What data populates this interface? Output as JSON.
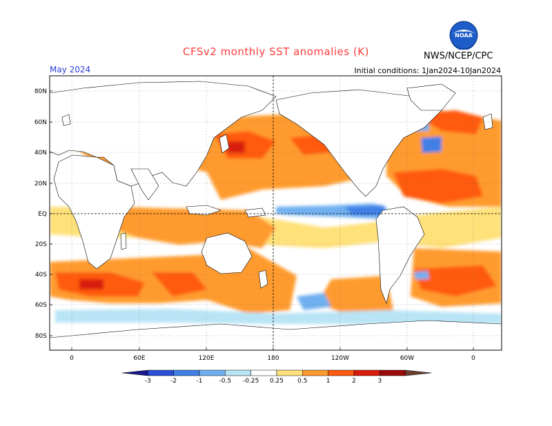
{
  "title": "CFSv2 monthly SST anomalies (K)",
  "credit": "NWS/NCEP/CPC",
  "logo_text": "NOAA",
  "period": "May 2024",
  "initial_conditions": "Initial conditions: 1Jan2024-10Jan2024",
  "lat_labels": [
    "80N",
    "60N",
    "40N",
    "20N",
    "EQ",
    "20S",
    "40S",
    "60S",
    "80S"
  ],
  "lon_labels": [
    "0",
    "60E",
    "120E",
    "180",
    "120W",
    "60W",
    "0"
  ],
  "colorbar": {
    "labels": [
      "-3",
      "-2",
      "-1",
      "-0.5",
      "-0.25",
      "0.25",
      "0.5",
      "1",
      "2",
      "3"
    ],
    "colors": [
      "#1a1a8c",
      "#2a4fd6",
      "#3f7fe6",
      "#6fb0f0",
      "#b8e4f5",
      "#ffffff",
      "#ffe17a",
      "#ff9b2e",
      "#ff5a10",
      "#d81a0a",
      "#9a0a0a",
      "#6a4030"
    ]
  },
  "colors": {
    "title": "#ff3b3b",
    "period": "#2a3bd6",
    "land": "#ffffff",
    "coast": "#000000"
  }
}
